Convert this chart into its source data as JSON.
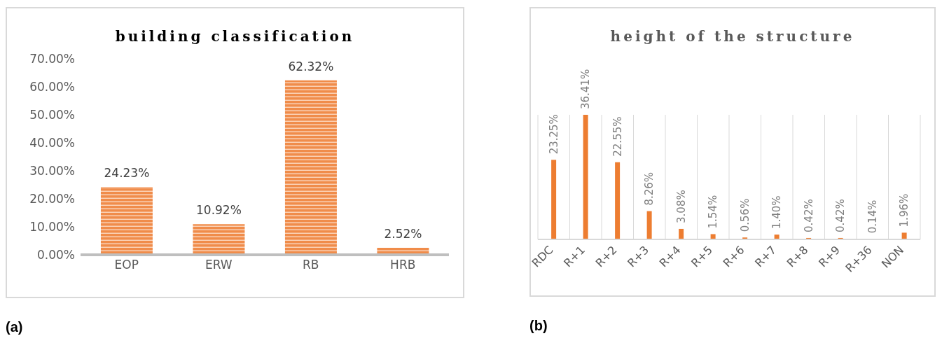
{
  "chart_data": [
    {
      "type": "bar",
      "title": "building classification",
      "categories": [
        "EOP",
        "ERW",
        "RB",
        "HRB"
      ],
      "values": [
        24.23,
        10.92,
        62.32,
        2.52
      ],
      "color": "#f08c4a",
      "value_labels": [
        "24.23%",
        "10.92%",
        "62.32%",
        "2.52%"
      ],
      "ylim": [
        0,
        70
      ],
      "yticks": [
        {
          "value": 0,
          "label": "0.00%"
        },
        {
          "value": 10,
          "label": "10.00%"
        },
        {
          "value": 20,
          "label": "20.00%"
        },
        {
          "value": 30,
          "label": "30.00%"
        },
        {
          "value": 40,
          "label": "40.00%"
        },
        {
          "value": 50,
          "label": "50.00%"
        },
        {
          "value": 60,
          "label": "60.00%"
        },
        {
          "value": 70,
          "label": "70.00%"
        }
      ],
      "grid": false,
      "legend": false,
      "annotations": [
        "(a)"
      ]
    },
    {
      "type": "bar",
      "title": "height of the structure",
      "categories": [
        "RDC",
        "R+1",
        "R+2",
        "R+3",
        "R+4",
        "R+5",
        "R+6",
        "R+7",
        "R+8",
        "R+9",
        "R+36",
        "NON"
      ],
      "values": [
        23.25,
        36.41,
        22.55,
        8.26,
        3.08,
        1.54,
        0.56,
        1.4,
        0.42,
        0.42,
        0.14,
        1.96
      ],
      "color": "#ed7d31",
      "value_labels": [
        "23.25%",
        "36.41%",
        "22.55%",
        "8.26%",
        "3.08%",
        "1.54%",
        "0.56%",
        "1.40%",
        "0.42%",
        "0.42%",
        "0.14%",
        "1.96%"
      ],
      "tick_labels": "x",
      "grid": "x",
      "legend": false,
      "annotations": [
        "(b)"
      ]
    }
  ]
}
